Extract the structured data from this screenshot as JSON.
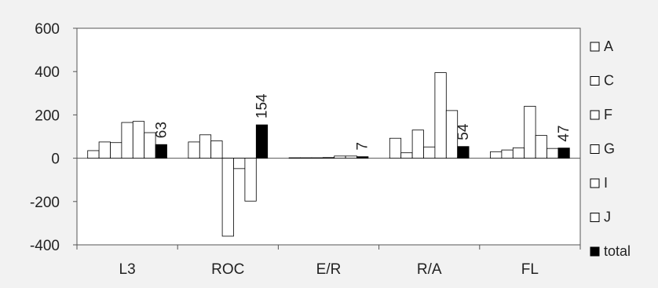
{
  "chart_data": {
    "type": "bar",
    "title": "",
    "xlabel": "",
    "ylabel": "",
    "ylim": [
      -400,
      600
    ],
    "y_ticks": [
      "600",
      "400",
      "200",
      "0",
      "-200",
      "-400"
    ],
    "categories": [
      "L3",
      "ROC",
      "E/R",
      "R/A",
      "FL"
    ],
    "series": [
      {
        "name": "A",
        "values": [
          35,
          75,
          2,
          92,
          30
        ],
        "color": "#ffffff"
      },
      {
        "name": "C",
        "values": [
          75,
          108,
          2,
          25,
          38
        ],
        "color": "#ffffff"
      },
      {
        "name": "F",
        "values": [
          72,
          80,
          2,
          130,
          48
        ],
        "color": "#ffffff"
      },
      {
        "name": "G",
        "values": [
          165,
          -360,
          3,
          52,
          240
        ],
        "color": "#ffffff"
      },
      {
        "name": "I",
        "values": [
          170,
          -48,
          10,
          395,
          105
        ],
        "color": "#ffffff"
      },
      {
        "name": "J",
        "values": [
          118,
          -198,
          10,
          220,
          45
        ],
        "color": "#ffffff"
      },
      {
        "name": "total",
        "values": [
          63,
          154,
          7,
          54,
          47
        ],
        "color": "#000000"
      }
    ],
    "data_labels": [
      "63",
      "154",
      "7",
      "54",
      "47"
    ],
    "legend_position": "right",
    "grid": false
  }
}
